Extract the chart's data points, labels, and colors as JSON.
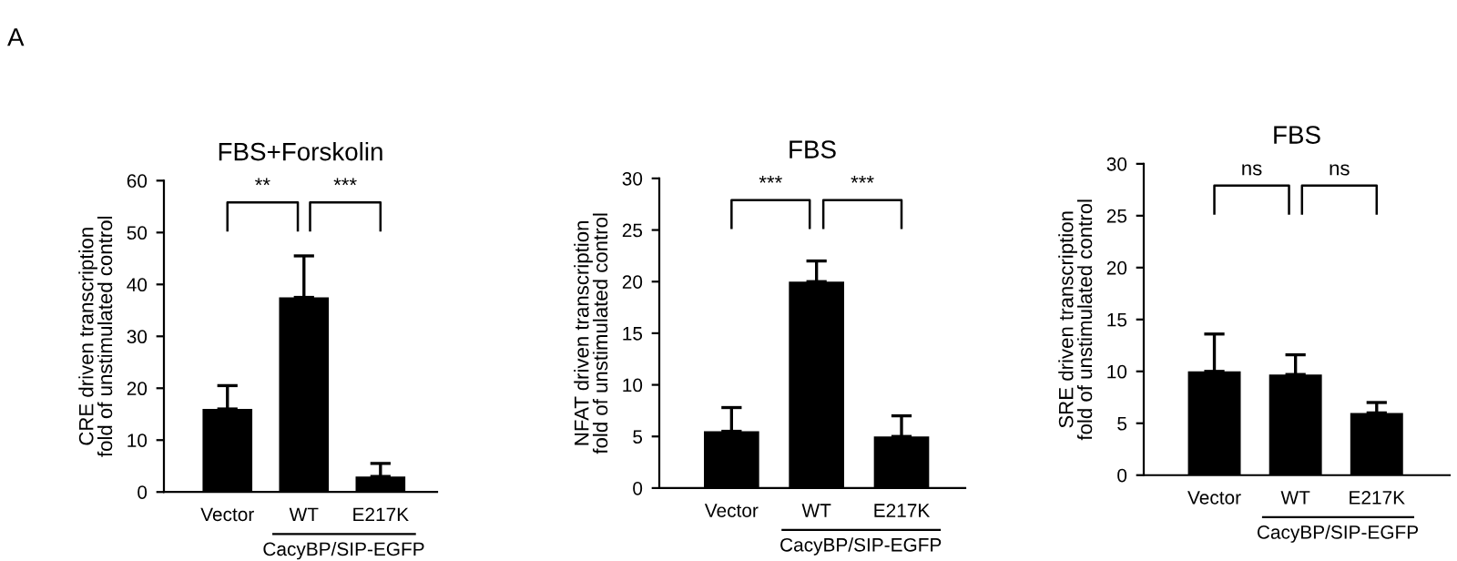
{
  "chart_data": [
    {
      "type": "bar",
      "title": "FBS+Forskolin",
      "ylabel": "CRE driven transcription\nfold of unstimulated control",
      "categories": [
        "Vector",
        "WT",
        "E217K"
      ],
      "values": [
        16,
        37.5,
        3
      ],
      "errors": [
        4.5,
        8,
        2.5
      ],
      "color": "#000000",
      "ylim": [
        0,
        60
      ],
      "yticks": [
        0,
        10,
        20,
        30,
        40,
        50,
        60
      ],
      "grid": false,
      "legend": false,
      "annotations": [
        "A",
        "**",
        "***",
        "CacyBP/SIP-EGFP"
      ]
    },
    {
      "type": "bar",
      "title": "FBS",
      "ylabel": "NFAT driven transcription\nfold of unstimulated control",
      "categories": [
        "Vector",
        "WT",
        "E217K"
      ],
      "values": [
        5.5,
        20,
        5
      ],
      "errors": [
        2.3,
        2,
        2
      ],
      "color": "#000000",
      "ylim": [
        0,
        30
      ],
      "yticks": [
        0,
        5,
        10,
        15,
        20,
        25,
        30
      ],
      "grid": false,
      "legend": false,
      "annotations": [
        "***",
        "***",
        "CacyBP/SIP-EGFP"
      ]
    },
    {
      "type": "bar",
      "title": "FBS",
      "ylabel": "SRE driven transcription\nfold of unstimulated control",
      "categories": [
        "Vector",
        "WT",
        "E217K"
      ],
      "values": [
        10,
        9.7,
        6
      ],
      "errors": [
        3.6,
        1.9,
        1
      ],
      "color": "#000000",
      "ylim": [
        0,
        30
      ],
      "yticks": [
        0,
        5,
        10,
        15,
        20,
        25,
        30
      ],
      "grid": false,
      "legend": false,
      "annotations": [
        "ns",
        "ns",
        "CacyBP/SIP-EGFP"
      ]
    }
  ]
}
